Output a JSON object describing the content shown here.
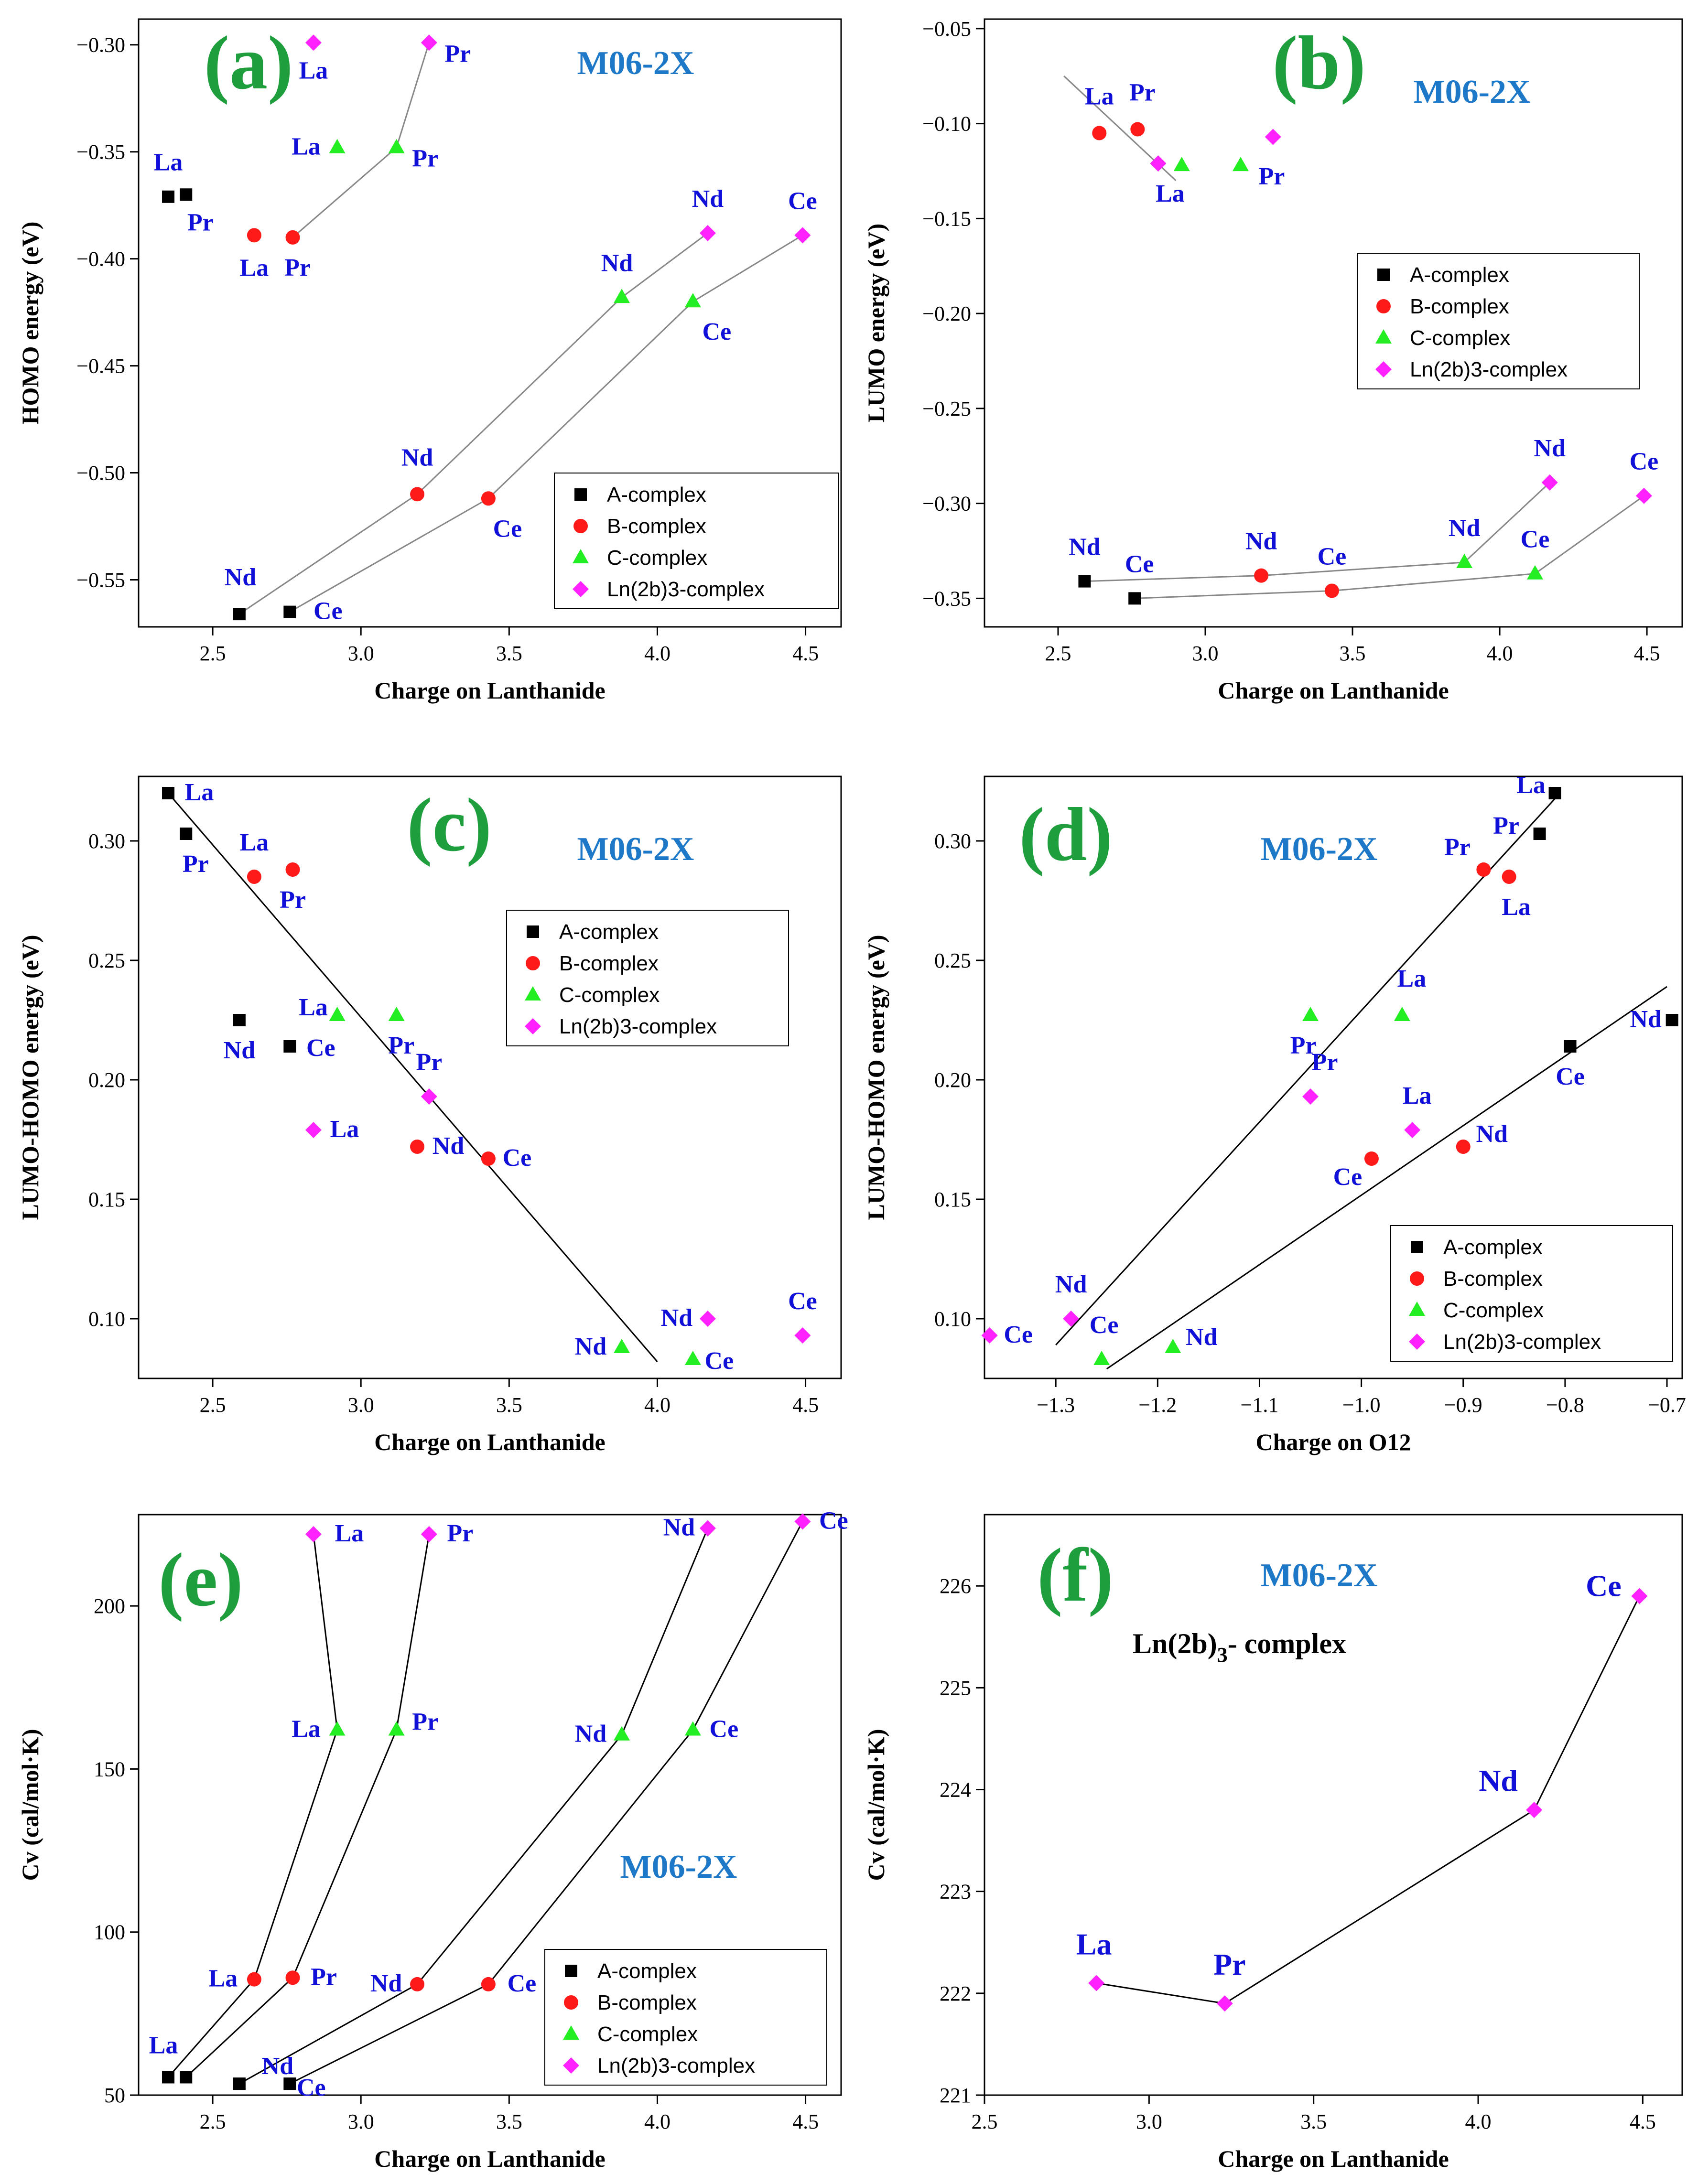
{
  "series_colors": {
    "A-complex": "#000000",
    "B-complex": "#ff1a1a",
    "C-complex": "#22ee22",
    "Ln(2b)3-complex": "#ff22ff"
  },
  "label_color": "#1010d8",
  "tag_color": "#1e9e3c",
  "method_color": "#1e78c8",
  "chart_data": [
    {
      "type": "scatter",
      "tag": "(a)",
      "method": "M06-2X",
      "xlabel": "Charge on Lanthanide",
      "ylabel": "HOMO energy (eV)",
      "xlim": [
        2.25,
        4.62
      ],
      "ylim": [
        -0.572,
        -0.288
      ],
      "xticks": [
        2.5,
        3.0,
        3.5,
        4.0,
        4.5
      ],
      "xtick_labels": [
        "2.5",
        "3.0",
        "3.5",
        "4.0",
        "4.5"
      ],
      "yticks": [
        -0.55,
        -0.5,
        -0.45,
        -0.4,
        -0.35,
        -0.3
      ],
      "ytick_labels": [
        "-0.55",
        "-0.50",
        "-0.45",
        "-0.40",
        "-0.35",
        "-0.30"
      ],
      "legend": [
        "A-complex",
        "B-complex",
        "C-complex",
        "Ln(2b)3-complex"
      ],
      "series": [
        {
          "name": "A-complex",
          "marker": "square",
          "points": [
            {
              "x": 2.35,
              "y": -0.371,
              "label": "La"
            },
            {
              "x": 2.41,
              "y": -0.37,
              "label": "Pr"
            },
            {
              "x": 2.59,
              "y": -0.566,
              "label": "Nd"
            },
            {
              "x": 2.76,
              "y": -0.565,
              "label": "Ce"
            }
          ]
        },
        {
          "name": "B-complex",
          "marker": "circle",
          "points": [
            {
              "x": 2.64,
              "y": -0.389,
              "label": "La"
            },
            {
              "x": 2.77,
              "y": -0.39,
              "label": "Pr"
            },
            {
              "x": 3.19,
              "y": -0.51,
              "label": "Nd"
            },
            {
              "x": 3.43,
              "y": -0.512,
              "label": "Ce"
            }
          ]
        },
        {
          "name": "C-complex",
          "marker": "triangle",
          "points": [
            {
              "x": 2.92,
              "y": -0.348,
              "label": "La"
            },
            {
              "x": 3.12,
              "y": -0.348,
              "label": "Pr"
            },
            {
              "x": 3.88,
              "y": -0.418,
              "label": "Nd"
            },
            {
              "x": 4.12,
              "y": -0.42,
              "label": "Ce"
            }
          ]
        },
        {
          "name": "Ln(2b)3-complex",
          "marker": "diamond",
          "points": [
            {
              "x": 2.84,
              "y": -0.299,
              "label": "La"
            },
            {
              "x": 3.23,
              "y": -0.299,
              "label": "Pr"
            },
            {
              "x": 4.17,
              "y": -0.388,
              "label": "Nd"
            },
            {
              "x": 4.49,
              "y": -0.389,
              "label": "Ce"
            }
          ]
        }
      ],
      "lines": [
        [
          [
            2.59,
            -0.566
          ],
          [
            3.19,
            -0.51
          ],
          [
            3.88,
            -0.418
          ],
          [
            4.17,
            -0.388
          ]
        ],
        [
          [
            2.76,
            -0.565
          ],
          [
            3.43,
            -0.512
          ],
          [
            4.12,
            -0.42
          ],
          [
            4.49,
            -0.389
          ]
        ],
        [
          [
            2.77,
            -0.39
          ],
          [
            3.12,
            -0.348
          ],
          [
            3.23,
            -0.299
          ]
        ]
      ]
    },
    {
      "type": "scatter",
      "tag": "(b)",
      "method": "M06-2X",
      "xlabel": "Charge on Lanthanide",
      "ylabel": "LUMO energy (eV)",
      "xlim": [
        2.25,
        4.62
      ],
      "ylim": [
        -0.365,
        -0.045
      ],
      "xticks": [
        2.5,
        3.0,
        3.5,
        4.0,
        4.5
      ],
      "xtick_labels": [
        "2.5",
        "3.0",
        "3.5",
        "4.0",
        "4.5"
      ],
      "yticks": [
        -0.35,
        -0.3,
        -0.25,
        -0.2,
        -0.15,
        -0.1,
        -0.05
      ],
      "ytick_labels": [
        "-0.35",
        "-0.30",
        "-0.25",
        "-0.20",
        "-0.15",
        "-0.10",
        "-0.05"
      ],
      "legend": [
        "A-complex",
        "B-complex",
        "C-complex",
        "Ln(2b)3-complex"
      ],
      "series": [
        {
          "name": "A-complex",
          "marker": "square",
          "points": [
            {
              "x": 2.59,
              "y": -0.341,
              "label": "Nd"
            },
            {
              "x": 2.76,
              "y": -0.35,
              "label": "Ce"
            }
          ]
        },
        {
          "name": "B-complex",
          "marker": "circle",
          "points": [
            {
              "x": 2.64,
              "y": -0.105,
              "label": "La"
            },
            {
              "x": 2.77,
              "y": -0.103,
              "label": "Pr"
            },
            {
              "x": 3.19,
              "y": -0.338,
              "label": "Nd"
            },
            {
              "x": 3.43,
              "y": -0.346,
              "label": "Ce"
            }
          ]
        },
        {
          "name": "C-complex",
          "marker": "triangle",
          "points": [
            {
              "x": 2.92,
              "y": -0.122,
              "label": ""
            },
            {
              "x": 3.12,
              "y": -0.122,
              "label": "Pr"
            },
            {
              "x": 3.88,
              "y": -0.331,
              "label": "Nd"
            },
            {
              "x": 4.12,
              "y": -0.337,
              "label": "Ce"
            }
          ]
        },
        {
          "name": "Ln(2b)3-complex",
          "marker": "diamond",
          "points": [
            {
              "x": 2.84,
              "y": -0.121,
              "label": "La"
            },
            {
              "x": 3.23,
              "y": -0.107,
              "label": ""
            },
            {
              "x": 4.17,
              "y": -0.289,
              "label": "Nd"
            },
            {
              "x": 4.49,
              "y": -0.296,
              "label": "Ce"
            }
          ]
        }
      ],
      "lines": [
        [
          [
            2.52,
            -0.075
          ],
          [
            2.9,
            -0.13
          ]
        ],
        [
          [
            2.59,
            -0.341
          ],
          [
            3.19,
            -0.338
          ],
          [
            3.88,
            -0.331
          ],
          [
            4.17,
            -0.289
          ]
        ],
        [
          [
            2.76,
            -0.35
          ],
          [
            3.43,
            -0.346
          ],
          [
            4.12,
            -0.337
          ],
          [
            4.49,
            -0.296
          ]
        ]
      ]
    },
    {
      "type": "scatter",
      "tag": "(c)",
      "method": "M06-2X",
      "xlabel": "Charge on Lanthanide",
      "ylabel": "LUMO-HOMO energy (eV)",
      "xlim": [
        2.25,
        4.62
      ],
      "ylim": [
        0.075,
        0.327
      ],
      "xticks": [
        2.5,
        3.0,
        3.5,
        4.0,
        4.5
      ],
      "xtick_labels": [
        "2.5",
        "3.0",
        "3.5",
        "4.0",
        "4.5"
      ],
      "yticks": [
        0.1,
        0.15,
        0.2,
        0.25,
        0.3
      ],
      "ytick_labels": [
        "0.10",
        "0.15",
        "0.20",
        "0.25",
        "0.30"
      ],
      "legend": [
        "A-complex",
        "B-complex",
        "C-complex",
        "Ln(2b)3-complex"
      ],
      "series": [
        {
          "name": "A-complex",
          "marker": "square",
          "points": [
            {
              "x": 2.35,
              "y": 0.32,
              "label": "La"
            },
            {
              "x": 2.41,
              "y": 0.303,
              "label": "Pr"
            },
            {
              "x": 2.59,
              "y": 0.225,
              "label": "Nd"
            },
            {
              "x": 2.76,
              "y": 0.214,
              "label": "Ce"
            }
          ]
        },
        {
          "name": "B-complex",
          "marker": "circle",
          "points": [
            {
              "x": 2.64,
              "y": 0.285,
              "label": "La"
            },
            {
              "x": 2.77,
              "y": 0.288,
              "label": "Pr"
            },
            {
              "x": 3.19,
              "y": 0.172,
              "label": "Nd"
            },
            {
              "x": 3.43,
              "y": 0.167,
              "label": "Ce"
            }
          ]
        },
        {
          "name": "C-complex",
          "marker": "triangle",
          "points": [
            {
              "x": 2.92,
              "y": 0.227,
              "label": "La"
            },
            {
              "x": 3.12,
              "y": 0.227,
              "label": "Pr"
            },
            {
              "x": 3.88,
              "y": 0.088,
              "label": "Nd"
            },
            {
              "x": 4.12,
              "y": 0.083,
              "label": "Ce"
            }
          ]
        },
        {
          "name": "Ln(2b)3-complex",
          "marker": "diamond",
          "points": [
            {
              "x": 2.84,
              "y": 0.179,
              "label": "La"
            },
            {
              "x": 3.23,
              "y": 0.193,
              "label": "Pr"
            },
            {
              "x": 4.17,
              "y": 0.1,
              "label": "Nd"
            },
            {
              "x": 4.49,
              "y": 0.093,
              "label": "Ce"
            }
          ]
        }
      ],
      "lines": [
        [
          [
            2.35,
            0.32
          ],
          [
            4.0,
            0.082
          ]
        ]
      ]
    },
    {
      "type": "scatter",
      "tag": "(d)",
      "method": "M06-2X",
      "xlabel": "Charge on O12",
      "ylabel": "LUMO-HOMO energy (eV)",
      "xlim": [
        -1.37,
        -0.685
      ],
      "ylim": [
        0.075,
        0.327
      ],
      "xticks": [
        -1.3,
        -1.2,
        -1.1,
        -1.0,
        -0.9,
        -0.8,
        -0.7
      ],
      "xtick_labels": [
        "-1.3",
        "-1.2",
        "-1.1",
        "-1.0",
        "-0.9",
        "-0.8",
        "-0.7"
      ],
      "yticks": [
        0.1,
        0.15,
        0.2,
        0.25,
        0.3
      ],
      "ytick_labels": [
        "0.10",
        "0.15",
        "0.20",
        "0.25",
        "0.30"
      ],
      "legend": [
        "A-complex",
        "B-complex",
        "C-complex",
        "Ln(2b)3-complex"
      ],
      "series": [
        {
          "name": "A-complex",
          "marker": "square",
          "points": [
            {
              "x": -0.81,
              "y": 0.32,
              "label": "La"
            },
            {
              "x": -0.825,
              "y": 0.303,
              "label": "Pr"
            },
            {
              "x": -0.695,
              "y": 0.225,
              "label": "Nd"
            },
            {
              "x": -0.795,
              "y": 0.214,
              "label": "Ce"
            }
          ]
        },
        {
          "name": "B-complex",
          "marker": "circle",
          "points": [
            {
              "x": -0.855,
              "y": 0.285,
              "label": "La"
            },
            {
              "x": -0.88,
              "y": 0.288,
              "label": "Pr"
            },
            {
              "x": -0.9,
              "y": 0.172,
              "label": "Nd"
            },
            {
              "x": -0.99,
              "y": 0.167,
              "label": "Ce"
            }
          ]
        },
        {
          "name": "C-complex",
          "marker": "triangle",
          "points": [
            {
              "x": -0.96,
              "y": 0.227,
              "label": "La"
            },
            {
              "x": -1.05,
              "y": 0.227,
              "label": "Pr"
            },
            {
              "x": -1.185,
              "y": 0.088,
              "label": "Nd"
            },
            {
              "x": -1.255,
              "y": 0.083,
              "label": "Ce"
            }
          ]
        },
        {
          "name": "Ln(2b)3-complex",
          "marker": "diamond",
          "points": [
            {
              "x": -0.95,
              "y": 0.179,
              "label": "La"
            },
            {
              "x": -1.05,
              "y": 0.193,
              "label": "Pr"
            },
            {
              "x": -1.285,
              "y": 0.1,
              "label": "Nd"
            },
            {
              "x": -1.365,
              "y": 0.093,
              "label": "Ce"
            }
          ]
        }
      ],
      "lines": [
        [
          [
            -1.3,
            0.089
          ],
          [
            -0.805,
            0.32
          ]
        ],
        [
          [
            -1.25,
            0.079
          ],
          [
            -0.7,
            0.239
          ]
        ]
      ]
    },
    {
      "type": "scatter",
      "tag": "(e)",
      "method": "M06-2X",
      "xlabel": "Charge on Lanthanide",
      "ylabel": "Cv (cal/mol·K)",
      "xlim": [
        2.25,
        4.62
      ],
      "ylim": [
        50,
        228
      ],
      "xticks": [
        2.5,
        3.0,
        3.5,
        4.0,
        4.5
      ],
      "xtick_labels": [
        "2.5",
        "3.0",
        "3.5",
        "4.0",
        "4.5"
      ],
      "yticks": [
        50,
        100,
        150,
        200
      ],
      "ytick_labels": [
        "50",
        "100",
        "150",
        "200"
      ],
      "legend": [
        "A-complex",
        "B-complex",
        "C-complex",
        "Ln(2b)3-complex"
      ],
      "series": [
        {
          "name": "A-complex",
          "marker": "square",
          "points": [
            {
              "x": 2.35,
              "y": 55.5,
              "label": "La"
            },
            {
              "x": 2.41,
              "y": 55.5,
              "label": ""
            },
            {
              "x": 2.59,
              "y": 53.5,
              "label": "Nd"
            },
            {
              "x": 2.76,
              "y": 53.5,
              "label": "Ce"
            }
          ]
        },
        {
          "name": "B-complex",
          "marker": "circle",
          "points": [
            {
              "x": 2.64,
              "y": 85.5,
              "label": "La"
            },
            {
              "x": 2.77,
              "y": 86,
              "label": "Pr"
            },
            {
              "x": 3.19,
              "y": 84,
              "label": "Nd"
            },
            {
              "x": 3.43,
              "y": 84,
              "label": "Ce"
            }
          ]
        },
        {
          "name": "C-complex",
          "marker": "triangle",
          "points": [
            {
              "x": 2.92,
              "y": 162,
              "label": "La"
            },
            {
              "x": 3.12,
              "y": 162,
              "label": "Pr"
            },
            {
              "x": 3.88,
              "y": 160.5,
              "label": "Nd"
            },
            {
              "x": 4.12,
              "y": 162,
              "label": "Ce"
            }
          ]
        },
        {
          "name": "Ln(2b)3-complex",
          "marker": "diamond",
          "points": [
            {
              "x": 2.84,
              "y": 222,
              "label": "La"
            },
            {
              "x": 3.23,
              "y": 222,
              "label": "Pr"
            },
            {
              "x": 4.17,
              "y": 223.8,
              "label": "Nd"
            },
            {
              "x": 4.49,
              "y": 225.9,
              "label": "Ce"
            }
          ]
        }
      ],
      "lines": [
        [
          [
            2.35,
            55.5
          ],
          [
            2.64,
            85.5
          ],
          [
            2.92,
            162
          ],
          [
            2.84,
            222
          ]
        ],
        [
          [
            2.41,
            55.5
          ],
          [
            2.77,
            86
          ],
          [
            3.12,
            162
          ],
          [
            3.23,
            222
          ]
        ],
        [
          [
            2.59,
            53.5
          ],
          [
            3.19,
            84
          ],
          [
            3.88,
            160.5
          ],
          [
            4.17,
            223.8
          ]
        ],
        [
          [
            2.76,
            53.5
          ],
          [
            3.43,
            84
          ],
          [
            4.12,
            162
          ],
          [
            4.49,
            225.9
          ]
        ]
      ]
    },
    {
      "type": "line",
      "tag": "(f)",
      "method": "M06-2X",
      "subtitle_main": "Ln(2b)",
      "subtitle_sub": "3",
      "subtitle_tail": "- complex",
      "xlabel": "Charge on Lanthanide",
      "ylabel": "Cv (cal/mol·K)",
      "xlim": [
        2.5,
        4.62
      ],
      "ylim": [
        221,
        226.7
      ],
      "xticks": [
        2.5,
        3.0,
        3.5,
        4.0,
        4.5
      ],
      "xtick_labels": [
        "2.5",
        "3.0",
        "3.5",
        "4.0",
        "4.5"
      ],
      "yticks": [
        221,
        222,
        223,
        224,
        225,
        226
      ],
      "ytick_labels": [
        "221",
        "222",
        "223",
        "224",
        "225",
        "226"
      ],
      "legend": [],
      "series": [
        {
          "name": "Ln(2b)3-complex",
          "marker": "diamond",
          "points": [
            {
              "x": 2.84,
              "y": 222.1,
              "label": "La"
            },
            {
              "x": 3.23,
              "y": 221.9,
              "label": "Pr"
            },
            {
              "x": 4.17,
              "y": 223.8,
              "label": "Nd"
            },
            {
              "x": 4.49,
              "y": 225.9,
              "label": "Ce"
            }
          ]
        }
      ],
      "lines": [
        [
          [
            2.84,
            222.1
          ],
          [
            3.23,
            221.9
          ],
          [
            4.17,
            223.8
          ],
          [
            4.49,
            225.9
          ]
        ]
      ]
    }
  ]
}
